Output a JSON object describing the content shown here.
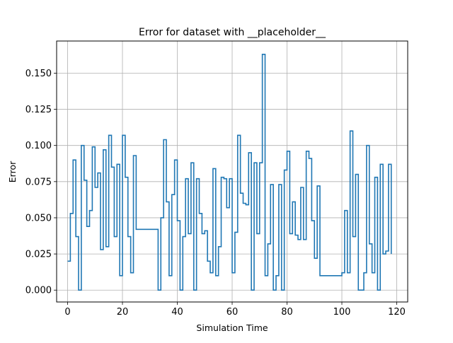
{
  "chart_data": {
    "type": "line",
    "title": "Error for dataset with __placeholder__",
    "xlabel": "Simulation Time",
    "ylabel": "Error",
    "xlim": [
      -4,
      124
    ],
    "ylim": [
      -0.0082,
      0.1722
    ],
    "xticks": [
      0,
      20,
      40,
      60,
      80,
      100,
      120
    ],
    "xtick_labels": [
      "0",
      "20",
      "40",
      "60",
      "80",
      "100",
      "120"
    ],
    "yticks": [
      0.0,
      0.025,
      0.05,
      0.075,
      0.1,
      0.125,
      0.15
    ],
    "ytick_labels": [
      "0.000",
      "0.025",
      "0.050",
      "0.075",
      "0.100",
      "0.125",
      "0.150"
    ],
    "grid": true,
    "drawstyle": "steps-post",
    "series_color": "#1f77b4",
    "x": [
      0,
      1,
      2,
      3,
      4,
      5,
      6,
      7,
      8,
      9,
      10,
      11,
      12,
      13,
      14,
      15,
      16,
      17,
      18,
      19,
      20,
      21,
      22,
      23,
      24,
      25,
      26,
      27,
      28,
      29,
      30,
      31,
      32,
      33,
      34,
      35,
      36,
      37,
      38,
      39,
      40,
      41,
      42,
      43,
      44,
      45,
      46,
      47,
      48,
      49,
      50,
      51,
      52,
      53,
      54,
      55,
      56,
      57,
      58,
      59,
      60,
      61,
      62,
      63,
      64,
      65,
      66,
      67,
      68,
      69,
      70,
      71,
      72,
      73,
      74,
      75,
      76,
      77,
      78,
      79,
      80,
      81,
      82,
      83,
      84,
      85,
      86,
      87,
      88,
      89,
      90,
      91,
      92,
      93,
      94,
      95,
      96,
      97,
      98,
      99,
      100,
      101,
      102,
      103,
      104,
      105,
      106,
      107,
      108,
      109,
      110,
      111,
      112,
      113,
      114,
      115,
      116,
      117,
      118
    ],
    "y": [
      0.02,
      0.053,
      0.09,
      0.037,
      0.0,
      0.1,
      0.076,
      0.044,
      0.055,
      0.099,
      0.071,
      0.081,
      0.028,
      0.097,
      0.03,
      0.107,
      0.085,
      0.037,
      0.087,
      0.01,
      0.107,
      0.078,
      0.037,
      0.012,
      0.093,
      0.042,
      0.042,
      0.042,
      0.042,
      0.042,
      0.042,
      0.042,
      0.042,
      0.0,
      0.05,
      0.104,
      0.061,
      0.01,
      0.066,
      0.09,
      0.048,
      0.0,
      0.037,
      0.077,
      0.039,
      0.088,
      0.0,
      0.077,
      0.053,
      0.039,
      0.041,
      0.02,
      0.012,
      0.084,
      0.01,
      0.03,
      0.078,
      0.077,
      0.057,
      0.077,
      0.012,
      0.04,
      0.107,
      0.067,
      0.06,
      0.059,
      0.095,
      0.0,
      0.088,
      0.039,
      0.088,
      0.163,
      0.01,
      0.032,
      0.073,
      0.0,
      0.01,
      0.073,
      0.0,
      0.083,
      0.096,
      0.039,
      0.061,
      0.038,
      0.035,
      0.071,
      0.035,
      0.096,
      0.091,
      0.048,
      0.022,
      0.072,
      0.01,
      0.01,
      0.01,
      0.01,
      0.01,
      0.01,
      0.01,
      0.01,
      0.012,
      0.055,
      0.012,
      0.11,
      0.037,
      0.08,
      0.0,
      0.0,
      0.012,
      0.1,
      0.032,
      0.012,
      0.078,
      0.0,
      0.087,
      0.025,
      0.027,
      0.087,
      0.025
    ]
  }
}
